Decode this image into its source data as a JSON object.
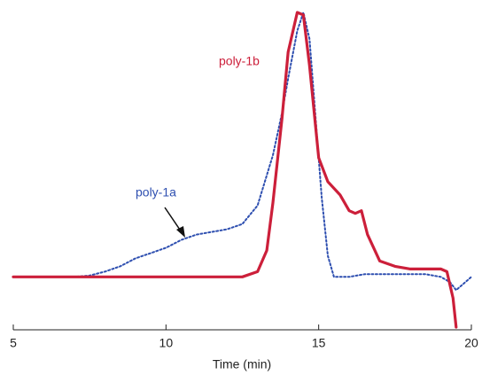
{
  "chart_data": {
    "type": "line",
    "xlabel": "Time (min)",
    "xlim": [
      5,
      20
    ],
    "xticks": [
      5,
      10,
      15,
      20
    ],
    "ylim": [
      -0.2,
      1.03
    ],
    "series": [
      {
        "name": "poly-1a",
        "color": "#2e4fb0",
        "style": "dotted",
        "x": [
          5,
          6,
          7,
          7.5,
          8,
          8.5,
          9,
          9.5,
          10,
          10.5,
          11,
          11.5,
          12,
          12.5,
          13,
          13.5,
          13.8,
          14,
          14.3,
          14.5,
          14.7,
          14.9,
          15.1,
          15.3,
          15.5,
          16,
          16.5,
          17,
          18,
          18.5,
          19,
          19.3,
          19.5,
          19.7,
          20
        ],
        "values": [
          0,
          0,
          0,
          0.005,
          0.02,
          0.04,
          0.07,
          0.09,
          0.11,
          0.14,
          0.16,
          0.17,
          0.18,
          0.2,
          0.27,
          0.46,
          0.62,
          0.75,
          0.93,
          1.0,
          0.9,
          0.6,
          0.3,
          0.08,
          0.0,
          0.0,
          0.01,
          0.01,
          0.01,
          0.01,
          0.0,
          -0.02,
          -0.05,
          -0.03,
          0.0
        ]
      },
      {
        "name": "poly-1b",
        "color": "#cc1f3a",
        "style": "solid",
        "x": [
          5,
          8,
          11,
          12.5,
          13,
          13.3,
          13.5,
          13.8,
          14,
          14.3,
          14.5,
          14.7,
          15,
          15.3,
          15.7,
          16,
          16.2,
          16.4,
          16.6,
          17,
          17.5,
          18,
          18.5,
          19,
          19.2,
          19.4,
          19.5
        ],
        "values": [
          0,
          0,
          0,
          0,
          0.02,
          0.1,
          0.28,
          0.6,
          0.85,
          1.0,
          0.99,
          0.8,
          0.45,
          0.36,
          0.31,
          0.25,
          0.24,
          0.25,
          0.16,
          0.06,
          0.04,
          0.03,
          0.03,
          0.03,
          0.02,
          -0.08,
          -0.19
        ]
      }
    ]
  }
}
